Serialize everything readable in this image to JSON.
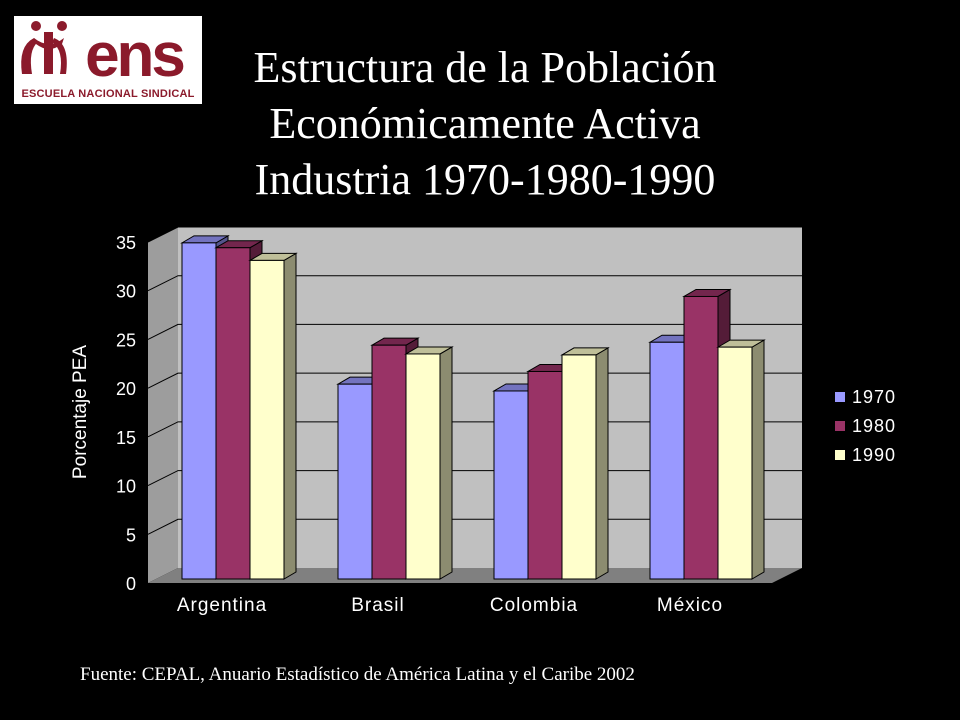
{
  "header": {
    "logo": {
      "word": "ens",
      "text": "ESCUELA NACIONAL SINDICAL"
    },
    "title_lines": [
      "Estructura de la Población",
      "Económicamente Activa",
      "Industria 1970-1980-1990"
    ]
  },
  "chart_data": {
    "type": "bar",
    "style": "3d-clustered",
    "categories": [
      "Argentina",
      "Brasil",
      "Colombia",
      "México"
    ],
    "series": [
      {
        "name": "1970",
        "values": [
          34.5,
          20.0,
          19.3,
          24.3
        ],
        "color": "#9999ff"
      },
      {
        "name": "1980",
        "values": [
          34.0,
          24.0,
          21.3,
          29.0
        ],
        "color": "#993366"
      },
      {
        "name": "1990",
        "values": [
          32.7,
          23.1,
          23.0,
          23.8
        ],
        "color": "#ffffcc"
      }
    ],
    "ylabel": "Porcentaje PEA",
    "xlabel": "",
    "ylim": [
      0,
      35
    ],
    "yticks": [
      0,
      5,
      10,
      15,
      20,
      25,
      30,
      35
    ],
    "grid": true,
    "legend": "right",
    "colors": {
      "wall": "#c0c0c0",
      "floor": "#808080",
      "text": "#ffffff"
    }
  },
  "footer": {
    "source": "Fuente: CEPAL, Anuario Estadístico de América Latina y el Caribe 2002"
  }
}
